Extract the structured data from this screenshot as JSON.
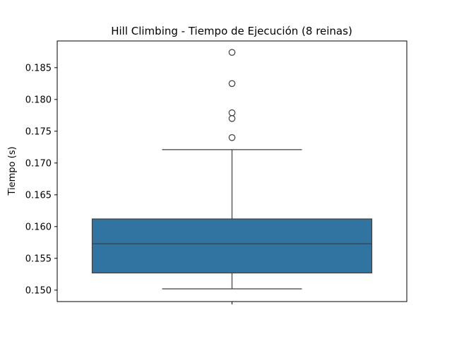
{
  "chart_data": {
    "type": "box",
    "title": "Hill Climbing - Tiempo de Ejecución (8 reinas)",
    "xlabel": "",
    "ylabel": "Tiempo (s)",
    "ylim": [
      0.1482,
      0.1892
    ],
    "yticks": [
      0.15,
      0.155,
      0.16,
      0.165,
      0.17,
      0.175,
      0.18,
      0.185
    ],
    "ytick_labels": [
      "0.150",
      "0.155",
      "0.160",
      "0.165",
      "0.170",
      "0.175",
      "0.180",
      "0.185"
    ],
    "grid": false,
    "box": {
      "whisker_low": 0.1502,
      "q1": 0.1527,
      "median": 0.1573,
      "q3": 0.1612,
      "whisker_high": 0.1721,
      "outliers": [
        0.1874,
        0.1825,
        0.1779,
        0.177,
        0.174
      ],
      "color": "#3274a1"
    }
  }
}
